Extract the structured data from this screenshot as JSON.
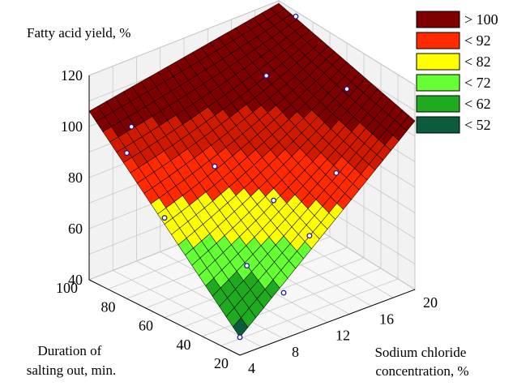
{
  "chart_data": {
    "type": "surface3d",
    "zlabel": "Fatty acid yield, %",
    "xlabel_lines": [
      "Sodium chloride",
      "concentration, %"
    ],
    "ylabel_lines": [
      "Duration of",
      "salting out, min."
    ],
    "x_ticks": [
      4,
      8,
      12,
      16,
      20
    ],
    "y_ticks": [
      20,
      40,
      60,
      80,
      100
    ],
    "z_ticks": [
      40,
      60,
      80,
      100,
      120
    ],
    "xlim": [
      4,
      20
    ],
    "ylim": [
      20,
      100
    ],
    "zlim": [
      40,
      120
    ],
    "legend": {
      "position": "top-right",
      "items": [
        {
          "label": "> 100",
          "color": "#7f0000"
        },
        {
          "label": "< 92",
          "color": "#ff2a00"
        },
        {
          "label": "< 82",
          "color": "#ffff00"
        },
        {
          "label": "< 72",
          "color": "#66ff33"
        },
        {
          "label": "< 62",
          "color": "#1faa1f"
        },
        {
          "label": "< 52",
          "color": "#0a5c3c"
        }
      ]
    },
    "surface_corners": [
      {
        "x": 4,
        "y": 20,
        "z": 47
      },
      {
        "x": 20,
        "y": 20,
        "z": 106
      },
      {
        "x": 4,
        "y": 100,
        "z": 106
      },
      {
        "x": 20,
        "y": 100,
        "z": 119
      }
    ],
    "observed_points": [
      {
        "x": 4,
        "y": 20,
        "z": 47
      },
      {
        "x": 8,
        "y": 20,
        "z": 58
      },
      {
        "x": 8,
        "y": 40,
        "z": 61
      },
      {
        "x": 12,
        "y": 30,
        "z": 70
      },
      {
        "x": 12,
        "y": 50,
        "z": 76
      },
      {
        "x": 4,
        "y": 60,
        "z": 79
      },
      {
        "x": 4,
        "y": 80,
        "z": 97
      },
      {
        "x": 6,
        "y": 90,
        "z": 100
      },
      {
        "x": 16,
        "y": 40,
        "z": 84
      },
      {
        "x": 20,
        "y": 60,
        "z": 102
      },
      {
        "x": 16,
        "y": 80,
        "z": 106
      },
      {
        "x": 20,
        "y": 90,
        "z": 118
      },
      {
        "x": 10,
        "y": 70,
        "z": 85
      }
    ]
  }
}
